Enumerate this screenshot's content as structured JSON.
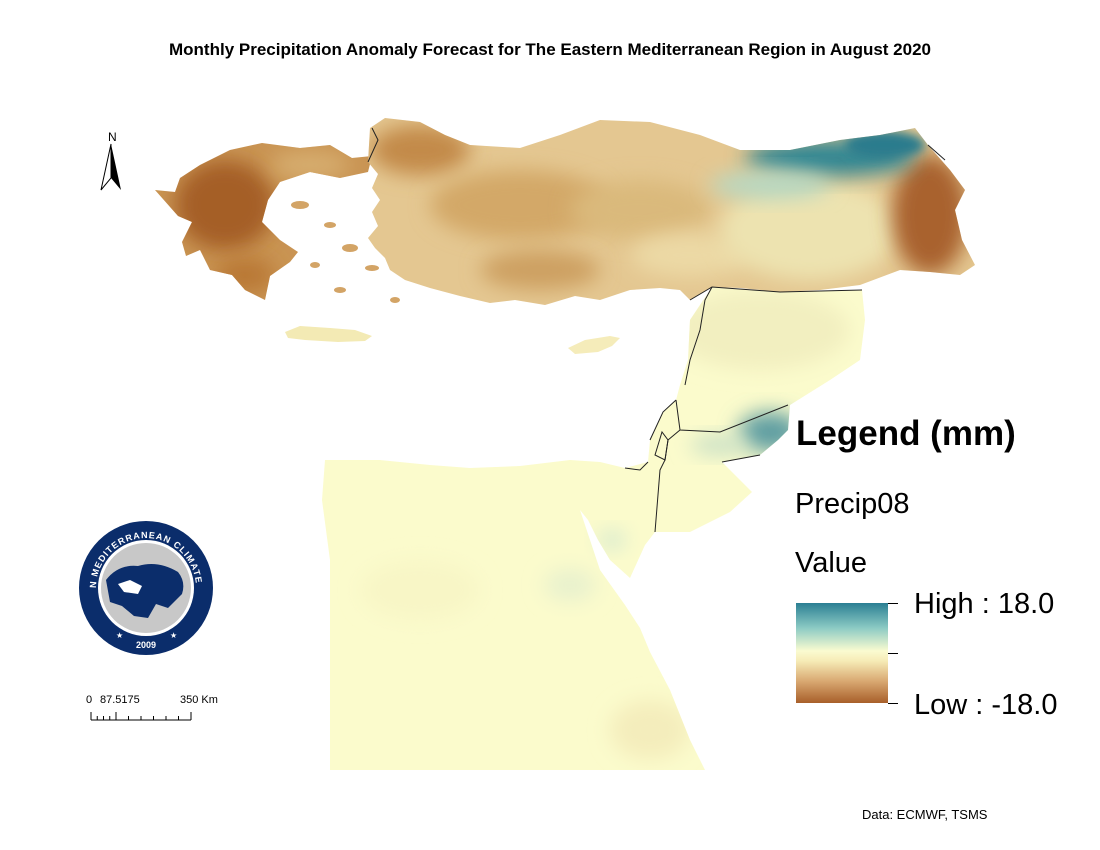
{
  "title": "Monthly Precipitation Anomaly Forecast for The Eastern Mediterranean Region in August 2020",
  "north_arrow": {
    "letter": "N",
    "icon": "north-arrow-icon"
  },
  "logo": {
    "top_text": "EASTERN MEDITERRANEAN CLIMATE CENTRE",
    "year": "2009",
    "colors": {
      "navy": "#0b2d6b",
      "grey": "#c8c8c8"
    }
  },
  "scale_bar": {
    "label_0": "0",
    "label_1": "87.5175",
    "label_2": "350  Km"
  },
  "legend": {
    "title": "Legend (mm)",
    "layer": "Precip08",
    "value_label": "Value",
    "high": "High : 18.0",
    "low": "Low : -18.0",
    "colors": {
      "high": "#2b7f93",
      "mid": "#fafbd0",
      "low": "#a85f2a"
    }
  },
  "credit": "Data: ECMWF, TSMS"
}
